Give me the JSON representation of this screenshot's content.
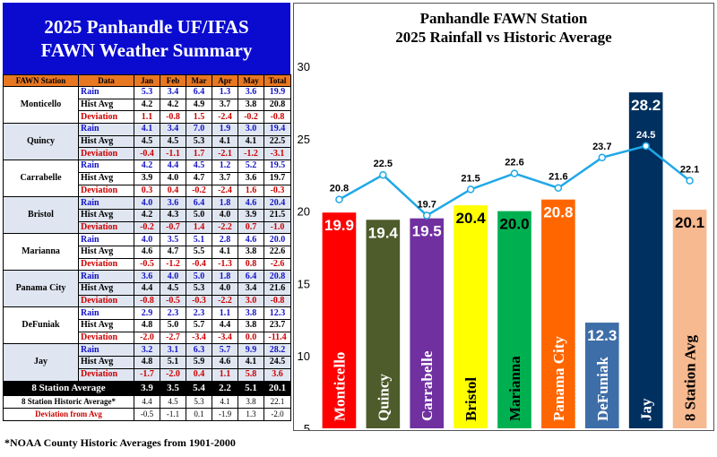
{
  "summary": {
    "title_line1": "2025 Panhandle UF/IFAS",
    "title_line2": "FAWN Weather Summary",
    "headers": [
      "FAWN Station",
      "Data",
      "Jan",
      "Feb",
      "Mar",
      "Apr",
      "May",
      "Total"
    ],
    "stations": [
      {
        "name": "Monticello",
        "rows": [
          {
            "label": "Rain",
            "values": [
              "5.3",
              "3.4",
              "6.4",
              "1.3",
              "3.6",
              "19.9"
            ]
          },
          {
            "label": "Hist Avg",
            "values": [
              "4.2",
              "4.2",
              "4.9",
              "3.7",
              "3.8",
              "20.8"
            ]
          },
          {
            "label": "Deviation",
            "values": [
              "1.1",
              "-0.8",
              "1.5",
              "-2.4",
              "-0.2",
              "-0.8"
            ]
          }
        ]
      },
      {
        "name": "Quincy",
        "rows": [
          {
            "label": "Rain",
            "values": [
              "4.1",
              "3.4",
              "7.0",
              "1.9",
              "3.0",
              "19.4"
            ]
          },
          {
            "label": "Hist Avg",
            "values": [
              "4.5",
              "4.5",
              "5.3",
              "4.1",
              "4.1",
              "22.5"
            ]
          },
          {
            "label": "Deviation",
            "values": [
              "-0.4",
              "-1.1",
              "1.7",
              "-2.1",
              "-1.2",
              "-3.1"
            ]
          }
        ]
      },
      {
        "name": "Carrabelle",
        "rows": [
          {
            "label": "Rain",
            "values": [
              "4.2",
              "4.4",
              "4.5",
              "1.2",
              "5.2",
              "19.5"
            ]
          },
          {
            "label": "Hist Avg",
            "values": [
              "3.9",
              "4.0",
              "4.7",
              "3.7",
              "3.6",
              "19.7"
            ]
          },
          {
            "label": "Deviation",
            "values": [
              "0.3",
              "0.4",
              "-0.2",
              "-2.4",
              "1.6",
              "-0.3"
            ]
          }
        ]
      },
      {
        "name": "Bristol",
        "rows": [
          {
            "label": "Rain",
            "values": [
              "4.0",
              "3.6",
              "6.4",
              "1.8",
              "4.6",
              "20.4"
            ]
          },
          {
            "label": "Hist Avg",
            "values": [
              "4.2",
              "4.3",
              "5.0",
              "4.0",
              "3.9",
              "21.5"
            ]
          },
          {
            "label": "Deviation",
            "values": [
              "-0.2",
              "-0.7",
              "1.4",
              "-2.2",
              "0.7",
              "-1.0"
            ]
          }
        ]
      },
      {
        "name": "Marianna",
        "rows": [
          {
            "label": "Rain",
            "values": [
              "4.0",
              "3.5",
              "5.1",
              "2.8",
              "4.6",
              "20.0"
            ]
          },
          {
            "label": "Hist Avg",
            "values": [
              "4.6",
              "4.7",
              "5.5",
              "4.1",
              "3.8",
              "22.6"
            ]
          },
          {
            "label": "Deviation",
            "values": [
              "-0.5",
              "-1.2",
              "-0.4",
              "-1.3",
              "0.8",
              "-2.6"
            ]
          }
        ]
      },
      {
        "name": "Panama City",
        "rows": [
          {
            "label": "Rain",
            "values": [
              "3.6",
              "4.0",
              "5.0",
              "1.8",
              "6.4",
              "20.8"
            ]
          },
          {
            "label": "Hist Avg",
            "values": [
              "4.4",
              "4.5",
              "5.3",
              "4.0",
              "3.4",
              "21.6"
            ]
          },
          {
            "label": "Deviation",
            "values": [
              "-0.8",
              "-0.5",
              "-0.3",
              "-2.2",
              "3.0",
              "-0.8"
            ]
          }
        ]
      },
      {
        "name": "DeFuniak",
        "rows": [
          {
            "label": "Rain",
            "values": [
              "2.9",
              "2.3",
              "2.3",
              "1.1",
              "3.8",
              "12.3"
            ]
          },
          {
            "label": "Hist Avg",
            "values": [
              "4.8",
              "5.0",
              "5.7",
              "4.4",
              "3.8",
              "23.7"
            ]
          },
          {
            "label": "Deviation",
            "values": [
              "-2.0",
              "-2.7",
              "-3.4",
              "-3.4",
              "0.0",
              "-11.4"
            ]
          }
        ]
      },
      {
        "name": "Jay",
        "rows": [
          {
            "label": "Rain",
            "values": [
              "3.2",
              "3.1",
              "6.3",
              "5.7",
              "9.9",
              "28.2"
            ]
          },
          {
            "label": "Hist Avg",
            "values": [
              "4.8",
              "5.1",
              "5.9",
              "4.6",
              "4.1",
              "24.5"
            ]
          },
          {
            "label": "Deviation",
            "values": [
              "-1.7",
              "-2.0",
              "0.4",
              "1.1",
              "5.8",
              "3.6"
            ]
          }
        ]
      }
    ],
    "station_average": {
      "label": "8 Station Average",
      "values": [
        "3.9",
        "3.5",
        "5.4",
        "2.2",
        "5.1",
        "20.1"
      ]
    },
    "historic_average": {
      "label": "8 Station Historic Average*",
      "values": [
        "4.4",
        "4.5",
        "5.3",
        "4.1",
        "3.8",
        "22.1"
      ]
    },
    "deviation_from_avg": {
      "label": "Deviation from Avg",
      "values": [
        "-0.5",
        "-1.1",
        "0.1",
        "-1.9",
        "1.3",
        "-2.0"
      ]
    },
    "footnote": "*NOAA County Historic Averages from 1901-2000"
  },
  "chart_data": {
    "type": "bar",
    "title_line1": "Panhandle FAWN Station",
    "title_line2": "2025 Rainfall vs Historic Average",
    "categories": [
      "Monticello",
      "Quincy",
      "Carrabelle",
      "Bristol",
      "Marianna",
      "Panama City",
      "DeFuniak",
      "Jay",
      "8 Station Avg"
    ],
    "series": [
      {
        "type": "bar",
        "values": [
          19.9,
          19.4,
          19.5,
          20.4,
          20.0,
          20.8,
          12.3,
          28.2,
          20.1
        ],
        "colors": [
          "#ff0000",
          "#4e5b2b",
          "#7030a0",
          "#ffff00",
          "#00b050",
          "#ff6600",
          "#3e6ea8",
          "#00305f",
          "#f7b98f"
        ],
        "label_colors": [
          "#ffffff",
          "#ffffff",
          "#ffffff",
          "#000000",
          "#000000",
          "#ffffff",
          "#ffffff",
          "#ffffff",
          "#000000"
        ]
      },
      {
        "type": "line",
        "values": [
          20.8,
          22.5,
          19.7,
          21.5,
          22.6,
          21.6,
          23.7,
          24.5,
          22.1
        ],
        "color": "#1fa8e8"
      }
    ],
    "ylim": [
      5,
      30
    ],
    "yticks": [
      5,
      10,
      15,
      20,
      25,
      30
    ],
    "grid": false,
    "legend": "none"
  }
}
